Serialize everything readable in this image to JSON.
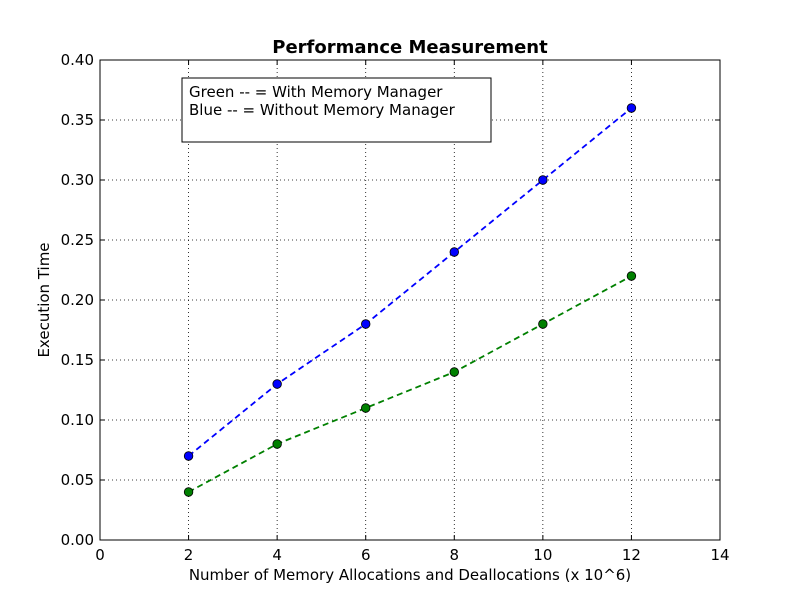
{
  "chart_data": {
    "type": "line",
    "title": "Performance Measurement",
    "xlabel": "Number of Memory Allocations and Deallocations (x 10^6)",
    "ylabel": "Execution Time",
    "xlim": [
      0,
      14
    ],
    "ylim": [
      0.0,
      0.4
    ],
    "xticks": [
      0,
      2,
      4,
      6,
      8,
      10,
      12,
      14
    ],
    "xtick_labels": [
      "0",
      "2",
      "4",
      "6",
      "8",
      "10",
      "12",
      "14"
    ],
    "yticks": [
      0.0,
      0.05,
      0.1,
      0.15,
      0.2,
      0.25,
      0.3,
      0.35,
      0.4
    ],
    "ytick_labels": [
      "0.00",
      "0.05",
      "0.10",
      "0.15",
      "0.20",
      "0.25",
      "0.30",
      "0.35",
      "0.40"
    ],
    "grid": true,
    "x": [
      2,
      4,
      6,
      8,
      10,
      12
    ],
    "series": [
      {
        "values": [
          0.07,
          0.13,
          0.18,
          0.24,
          0.3,
          0.36
        ],
        "color": "#0000ff",
        "line_style": "dashed",
        "marker": "circle"
      },
      {
        "values": [
          0.04,
          0.08,
          0.11,
          0.14,
          0.18,
          0.22
        ],
        "color": "#008000",
        "line_style": "dashed",
        "marker": "circle"
      }
    ],
    "annotation": {
      "lines": [
        "Green -- = With Memory Manager",
        "Blue -- = Without Memory Manager"
      ],
      "placement": "top-left"
    }
  }
}
